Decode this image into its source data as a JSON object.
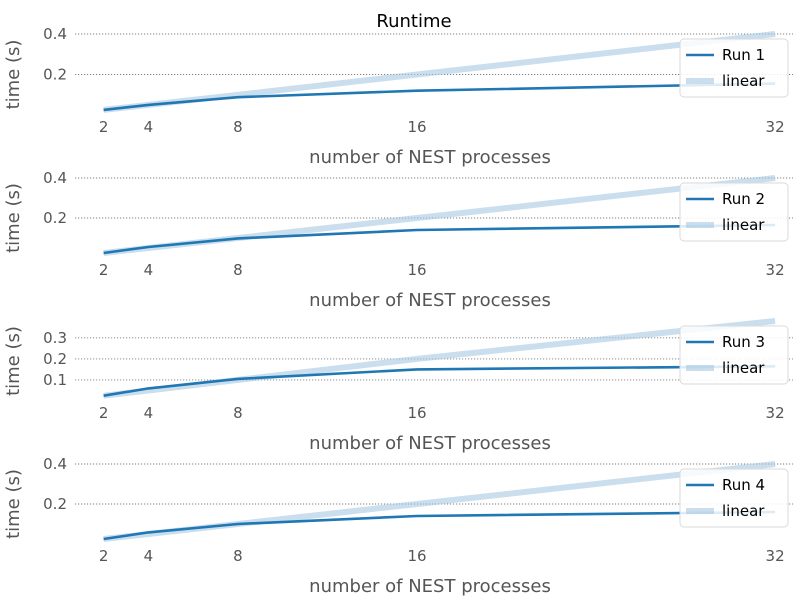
{
  "chart_data": {
    "title": "Runtime",
    "type": "line",
    "xlim": [
      0.72,
      32.8
    ],
    "x_ticks": [
      2,
      4,
      8,
      16,
      32
    ],
    "grid": "y-dotted",
    "legend_position": "right",
    "colors": {
      "run": "#1f77b4",
      "linear": "#a6c8e2"
    },
    "subplots": [
      {
        "xlabel": "number of NEST processes",
        "ylabel": "time (s)",
        "ylim": [
          0.0,
          0.4
        ],
        "y_ticks": [
          0.2,
          0.4
        ],
        "y_tick_labels": [
          "0.2",
          "0.4"
        ],
        "series": [
          {
            "name": "Run 1",
            "x": [
              2,
              4,
              8,
              16,
              32
            ],
            "y": [
              0.025,
              0.05,
              0.088,
              0.12,
              0.155
            ]
          },
          {
            "name": "linear",
            "x": [
              2,
              4,
              8,
              16,
              32
            ],
            "y": [
              0.025,
              0.05,
              0.1,
              0.2,
              0.4
            ]
          }
        ]
      },
      {
        "xlabel": "number of NEST processes",
        "ylabel": "time (s)",
        "ylim": [
          0.0,
          0.4
        ],
        "y_ticks": [
          0.2,
          0.4
        ],
        "y_tick_labels": [
          "0.2",
          "0.4"
        ],
        "series": [
          {
            "name": "Run 2",
            "x": [
              2,
              4,
              8,
              16,
              32
            ],
            "y": [
              0.025,
              0.055,
              0.098,
              0.14,
              0.165
            ]
          },
          {
            "name": "linear",
            "x": [
              2,
              4,
              8,
              16,
              32
            ],
            "y": [
              0.025,
              0.05,
              0.1,
              0.2,
              0.4
            ]
          }
        ]
      },
      {
        "xlabel": "number of NEST processes",
        "ylabel": "time (s)",
        "ylim": [
          0.0,
          0.38
        ],
        "y_ticks": [
          0.1,
          0.2,
          0.3
        ],
        "y_tick_labels": [
          "0.1",
          "0.2",
          "0.3"
        ],
        "series": [
          {
            "name": "Run 3",
            "x": [
              2,
              4,
              8,
              16,
              32
            ],
            "y": [
              0.025,
              0.06,
              0.105,
              0.15,
              0.165
            ]
          },
          {
            "name": "linear",
            "x": [
              2,
              4,
              8,
              16,
              32
            ],
            "y": [
              0.025,
              0.05,
              0.1,
              0.2,
              0.38
            ]
          }
        ]
      },
      {
        "xlabel": "number of NEST processes",
        "ylabel": "time (s)",
        "ylim": [
          0.0,
          0.4
        ],
        "y_ticks": [
          0.2,
          0.4
        ],
        "y_tick_labels": [
          "0.2",
          "0.4"
        ],
        "series": [
          {
            "name": "Run 4",
            "x": [
              2,
              4,
              8,
              16,
              32
            ],
            "y": [
              0.025,
              0.058,
              0.1,
              0.14,
              0.16
            ]
          },
          {
            "name": "linear",
            "x": [
              2,
              4,
              8,
              16,
              32
            ],
            "y": [
              0.025,
              0.05,
              0.1,
              0.2,
              0.4
            ]
          }
        ]
      }
    ]
  }
}
